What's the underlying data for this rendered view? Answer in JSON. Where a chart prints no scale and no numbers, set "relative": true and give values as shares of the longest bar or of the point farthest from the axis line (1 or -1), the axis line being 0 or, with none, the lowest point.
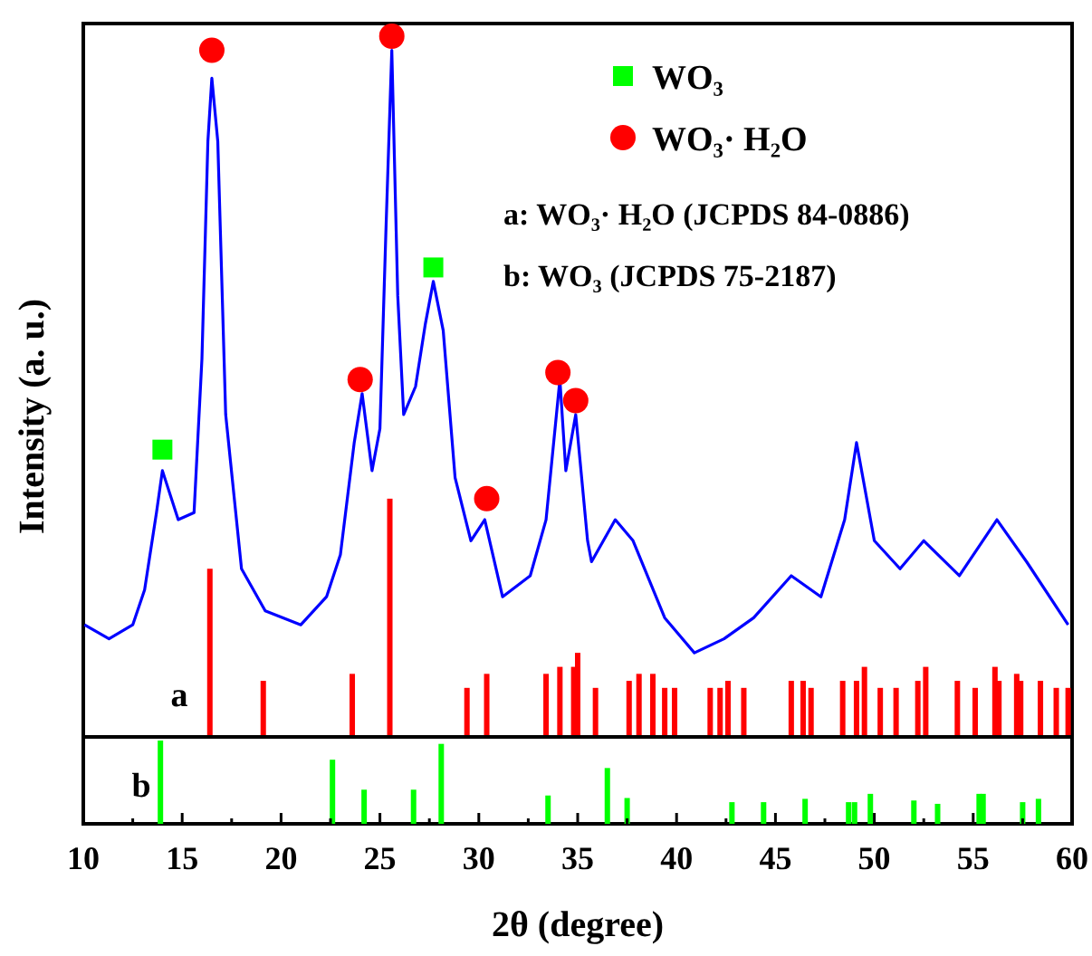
{
  "chart_data": [
    {
      "type": "line",
      "relative": true,
      "xlim": [
        10,
        60
      ],
      "tick_labels": false,
      "ylabel": "Intensity  (a. u.)",
      "legend": "top right",
      "annotations": [
        "a: WO₃·  H₂O  (JCPDS 84-0886)",
        "b: WO₃      (JCPDS 75-2187)",
        "a"
      ],
      "series": [
        {
          "type": "line",
          "color": "#0000ff",
          "x": [
            10.06,
            11.3,
            12.5,
            13.1,
            13.7,
            14.0,
            14.8,
            15.6,
            16.0,
            16.3,
            16.5,
            16.8,
            17.2,
            18.0,
            19.2,
            21.0,
            22.3,
            23.0,
            23.7,
            24.1,
            24.6,
            25.0,
            25.3,
            25.6,
            25.9,
            26.2,
            26.8,
            27.3,
            27.7,
            28.2,
            28.8,
            29.6,
            30.3,
            31.2,
            32.6,
            33.4,
            34.1,
            34.4,
            34.9,
            35.5,
            35.7,
            36.9,
            37.8,
            39.4,
            40.9,
            42.4,
            43.9,
            45.8,
            47.3,
            48.5,
            49.1,
            50.0,
            51.3,
            52.5,
            54.3,
            56.2,
            57.7,
            59.8
          ],
          "values": [
            0.16,
            0.14,
            0.16,
            0.21,
            0.32,
            0.38,
            0.31,
            0.32,
            0.54,
            0.85,
            0.94,
            0.85,
            0.46,
            0.24,
            0.18,
            0.16,
            0.2,
            0.26,
            0.42,
            0.49,
            0.38,
            0.44,
            0.72,
            0.98,
            0.63,
            0.46,
            0.5,
            0.59,
            0.65,
            0.58,
            0.37,
            0.28,
            0.31,
            0.2,
            0.23,
            0.31,
            0.51,
            0.38,
            0.46,
            0.28,
            0.25,
            0.31,
            0.28,
            0.17,
            0.12,
            0.14,
            0.17,
            0.23,
            0.2,
            0.31,
            0.42,
            0.28,
            0.24,
            0.28,
            0.23,
            0.31,
            0.25,
            0.16
          ]
        },
        {
          "type": "bar",
          "color": "#ff0000",
          "x": [
            16.4,
            19.1,
            23.6,
            25.5,
            29.4,
            30.4,
            33.4,
            34.1,
            34.8,
            35.0,
            35.9,
            37.6,
            38.1,
            38.8,
            39.4,
            39.9,
            41.7,
            42.2,
            42.6,
            43.4,
            45.8,
            46.4,
            46.8,
            48.4,
            49.1,
            49.5,
            50.3,
            51.1,
            52.2,
            52.6,
            54.2,
            55.1,
            56.1,
            56.3,
            57.2,
            57.4,
            58.4,
            59.2,
            59.8
          ],
          "values": [
            0.24,
            0.08,
            0.09,
            0.34,
            0.07,
            0.09,
            0.09,
            0.1,
            0.1,
            0.12,
            0.07,
            0.08,
            0.09,
            0.09,
            0.07,
            0.07,
            0.07,
            0.07,
            0.08,
            0.07,
            0.08,
            0.08,
            0.07,
            0.08,
            0.08,
            0.1,
            0.07,
            0.07,
            0.08,
            0.1,
            0.08,
            0.07,
            0.1,
            0.08,
            0.09,
            0.08,
            0.08,
            0.07,
            0.07
          ]
        },
        {
          "type": "scatter",
          "name": "WO₃",
          "color": "#00ff00",
          "marker": "square",
          "x": [
            14.0,
            27.7
          ],
          "values": [
            0.41,
            0.67
          ]
        },
        {
          "type": "scatter",
          "name": "WO₃·  H₂O",
          "color": "#ff0000",
          "marker": "circle",
          "x": [
            16.5,
            25.6,
            24.0,
            30.4,
            34.0,
            34.9
          ],
          "values": [
            0.98,
            1.0,
            0.51,
            0.34,
            0.52,
            0.48
          ]
        }
      ]
    },
    {
      "type": "bar",
      "relative": true,
      "xlim": [
        10,
        60
      ],
      "xticks": [
        10,
        {
          "value": 12.5,
          "label": null
        },
        15,
        {
          "value": 17.5,
          "label": null
        },
        20,
        {
          "value": 22.5,
          "label": null
        },
        25,
        {
          "value": 27.5,
          "label": null
        },
        30,
        {
          "value": 32.5,
          "label": null
        },
        35,
        {
          "value": 37.5,
          "label": null
        },
        40,
        {
          "value": 42.5,
          "label": null
        },
        45,
        {
          "value": 47.5,
          "label": null
        },
        50,
        {
          "value": 52.5,
          "label": null
        },
        55,
        {
          "value": 57.5,
          "label": null
        },
        60
      ],
      "tick_labels": "x",
      "xlabel": "2θ   (degree)",
      "annotations": [
        "b"
      ],
      "series": [
        {
          "color": "#00ff00",
          "x": [
            13.9,
            22.6,
            24.2,
            26.7,
            28.1,
            33.5,
            36.5,
            37.5,
            42.8,
            44.4,
            46.5,
            48.7,
            49.0,
            49.8,
            52.0,
            53.2,
            55.3,
            55.5,
            57.5,
            58.3
          ],
          "values": [
            1.0,
            0.77,
            0.41,
            0.41,
            0.96,
            0.34,
            0.67,
            0.31,
            0.26,
            0.26,
            0.3,
            0.26,
            0.26,
            0.36,
            0.28,
            0.24,
            0.36,
            0.36,
            0.26,
            0.3
          ]
        }
      ]
    }
  ]
}
